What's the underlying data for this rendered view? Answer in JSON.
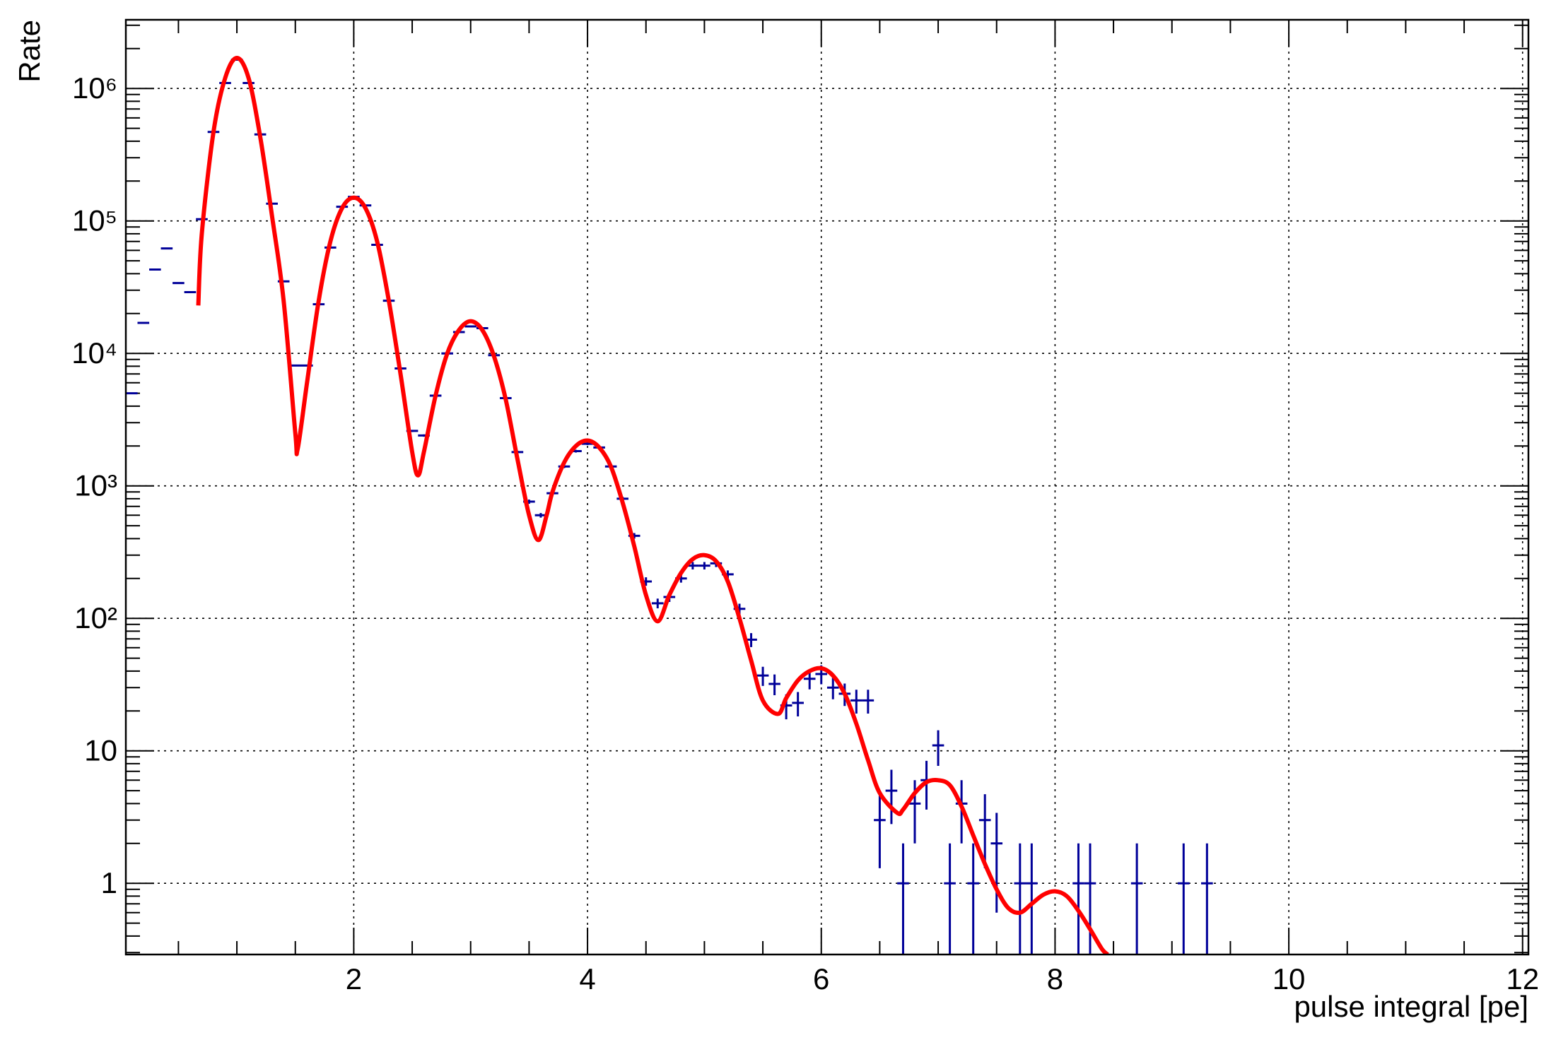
{
  "chart_data": {
    "type": "errorbar",
    "x_label": "pulse integral [pe]",
    "y_label": "Rate",
    "xlim": [
      0.05,
      12.05
    ],
    "ylim": [
      0.29,
      3300000
    ],
    "log_y": true,
    "grid": true,
    "xticks": [
      2,
      4,
      6,
      8,
      10,
      12
    ],
    "yticks": [
      1,
      10,
      {
        "value": 100,
        "label": "10²"
      },
      {
        "value": 1000,
        "label": "10³"
      },
      {
        "value": 10000,
        "label": "10⁴"
      },
      {
        "value": 100000,
        "label": "10⁵"
      },
      {
        "value": 1000000,
        "label": "10⁶"
      }
    ],
    "xminorticks": [
      0.5,
      1,
      1.5,
      2.5,
      3,
      3.5,
      4.5,
      5,
      5.5,
      6.5,
      7,
      7.5,
      8.5,
      9,
      9.5,
      10.5,
      11,
      11.5
    ],
    "yminorticks": [
      0.3,
      0.4,
      0.5,
      0.6,
      0.7,
      0.8,
      0.9,
      2,
      3,
      4,
      5,
      6,
      7,
      8,
      9,
      20,
      30,
      40,
      50,
      60,
      70,
      80,
      90,
      200,
      300,
      400,
      500,
      600,
      700,
      800,
      900,
      2000,
      3000,
      4000,
      5000,
      6000,
      7000,
      8000,
      9000,
      20000,
      30000,
      40000,
      50000,
      60000,
      70000,
      80000,
      90000,
      200000,
      300000,
      400000,
      500000,
      600000,
      700000,
      800000,
      900000,
      2000000,
      3000000
    ],
    "data": {
      "color": "#000099",
      "x": [
        0.1,
        0.2,
        0.3,
        0.4,
        0.5,
        0.6,
        0.7,
        0.8,
        0.9,
        1.0,
        1.1,
        1.2,
        1.3,
        1.4,
        1.5,
        1.6,
        1.7,
        1.8,
        1.9,
        2.0,
        2.1,
        2.2,
        2.3,
        2.4,
        2.5,
        2.6,
        2.7,
        2.8,
        2.9,
        3.0,
        3.1,
        3.2,
        3.3,
        3.4,
        3.5,
        3.6,
        3.7,
        3.8,
        3.9,
        4.0,
        4.1,
        4.2,
        4.3,
        4.4,
        4.5,
        4.6,
        4.7,
        4.8,
        4.9,
        5.0,
        5.1,
        5.2,
        5.3,
        5.4,
        5.5,
        5.6,
        5.7,
        5.8,
        5.9,
        6.0,
        6.1,
        6.2,
        6.3,
        6.4,
        6.5,
        6.6,
        6.7,
        6.8,
        6.9,
        7.0,
        7.1,
        7.2,
        7.3,
        7.4,
        7.5,
        7.7,
        7.8,
        8.2,
        8.3,
        8.7,
        9.1,
        9.3
      ],
      "values": [
        5000,
        17000,
        43000,
        62000,
        34000,
        29000,
        103000,
        470000,
        1100000,
        1650000,
        1100000,
        450000,
        135000,
        35000,
        8100,
        8100,
        23500,
        63000,
        128000,
        152000,
        131000,
        66000,
        25000,
        7700,
        2600,
        2400,
        4800,
        10000,
        14500,
        16000,
        15500,
        9700,
        4600,
        1800,
        760,
        600,
        880,
        1400,
        1830,
        2080,
        1950,
        1400,
        800,
        420,
        190,
        130,
        145,
        200,
        250,
        250,
        260,
        215,
        118,
        69,
        37,
        32,
        22,
        23,
        35,
        38,
        30,
        27,
        24,
        24,
        3,
        5,
        1,
        4,
        6,
        11,
        1,
        4,
        1,
        3,
        2,
        1,
        1,
        1,
        1,
        1,
        1,
        1
      ],
      "errors": [
        71,
        130,
        207,
        249,
        184,
        170,
        321,
        686,
        1049,
        1285,
        1049,
        671,
        367,
        187,
        90,
        90,
        153,
        251,
        358,
        390,
        362,
        257,
        158,
        88,
        51,
        49,
        69,
        100,
        120,
        126,
        124,
        98,
        68,
        42,
        28,
        24,
        30,
        37,
        43,
        46,
        44,
        37,
        28,
        20,
        14,
        11,
        12,
        14,
        16,
        16,
        16,
        15,
        11,
        8.3,
        6.1,
        5.7,
        4.7,
        4.8,
        5.9,
        6.2,
        5.5,
        5.2,
        4.9,
        4.9,
        1.7,
        2.2,
        1,
        2,
        2.4,
        3.3,
        1,
        2,
        1,
        1.7,
        1.4,
        1,
        1,
        1,
        1,
        1,
        1,
        1
      ]
    },
    "fit": {
      "color": "#ff0000",
      "x": [
        0.67,
        0.7,
        0.8,
        0.9,
        1.0,
        1.1,
        1.2,
        1.3,
        1.4,
        1.5,
        1.52,
        1.6,
        1.7,
        1.8,
        1.9,
        2.0,
        2.1,
        2.2,
        2.3,
        2.4,
        2.5,
        2.55,
        2.6,
        2.7,
        2.8,
        2.9,
        3.0,
        3.1,
        3.2,
        3.3,
        3.4,
        3.5,
        3.58,
        3.65,
        3.7,
        3.8,
        3.9,
        4.0,
        4.1,
        4.2,
        4.3,
        4.4,
        4.5,
        4.6,
        4.7,
        4.8,
        4.9,
        5.0,
        5.1,
        5.2,
        5.3,
        5.4,
        5.5,
        5.63,
        5.7,
        5.8,
        5.9,
        6.0,
        6.1,
        6.2,
        6.3,
        6.4,
        6.5,
        6.65,
        6.7,
        6.8,
        6.9,
        7.0,
        7.1,
        7.2,
        7.3,
        7.4,
        7.5,
        7.6,
        7.7,
        7.8,
        7.9,
        8.0,
        8.1,
        8.2,
        8.3,
        8.4,
        8.45
      ],
      "values": [
        23000,
        80000,
        470000,
        1200000,
        1700000,
        1200000,
        430000,
        110000,
        25000,
        2500,
        1900,
        6000,
        25000,
        70000,
        125000,
        150000,
        125000,
        70000,
        25000,
        7000,
        1800,
        1200,
        1800,
        4800,
        10000,
        15000,
        17500,
        15000,
        9500,
        4500,
        1600,
        600,
        390,
        600,
        900,
        1500,
        2000,
        2200,
        1950,
        1400,
        750,
        350,
        150,
        95,
        150,
        220,
        280,
        300,
        270,
        190,
        100,
        48,
        24,
        19,
        25,
        34,
        40,
        42,
        37,
        27,
        16,
        8.5,
        4.8,
        3.4,
        3.6,
        4.8,
        5.8,
        6,
        5.5,
        3.8,
        2.3,
        1.4,
        0.9,
        0.65,
        0.6,
        0.7,
        0.82,
        0.87,
        0.8,
        0.62,
        0.45,
        0.32,
        0.29
      ]
    }
  }
}
